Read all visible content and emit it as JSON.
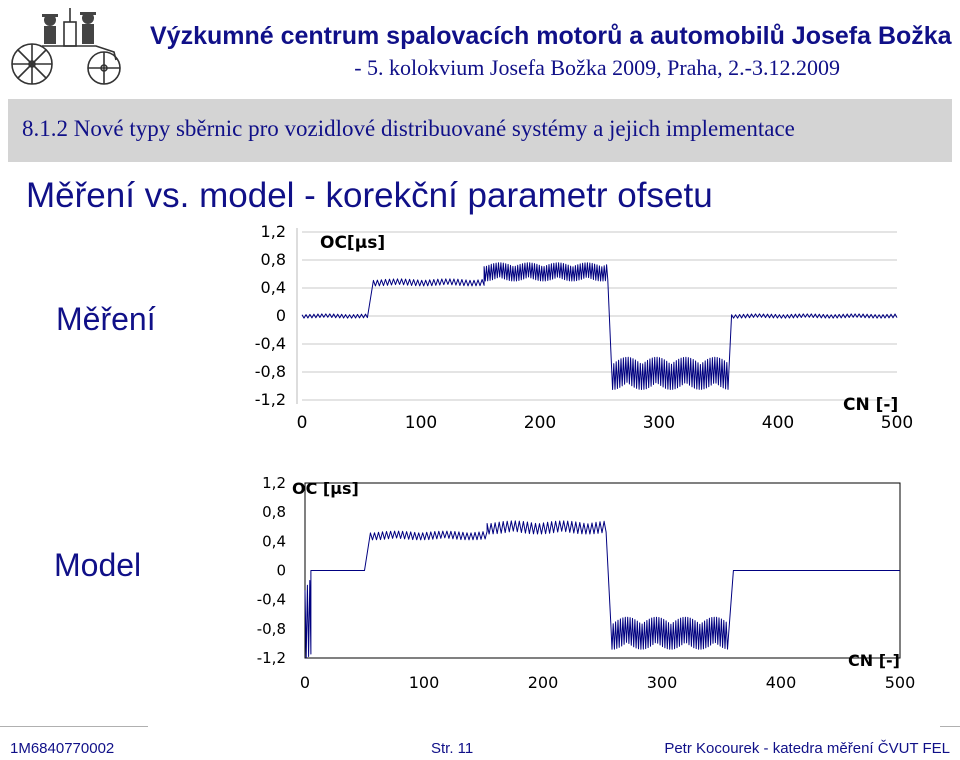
{
  "header": {
    "title": "Výzkumné centrum spalovacích motorů a automobilů Josefa Božka",
    "subtitle": "- 5. kolokvium Josefa Božka 2009, Praha, 2.-3.12.2009"
  },
  "section_bar": "8.1.2 Nové typy sběrnic pro vozidlové distribuované systémy a jejich implementace",
  "slide_title": "Měření vs. model - korekční parametr ofsetu",
  "labels": {
    "measurement": "Měření",
    "model": "Model"
  },
  "footer": {
    "left": "1M6840770002",
    "center": "Str. 11",
    "right": "Petr Kocourek - katedra měření ČVUT FEL"
  },
  "colors": {
    "accent": "#101088",
    "trace": "#000080",
    "bar": "#d4d4d4"
  },
  "icons": [
    "steam-car-logo-icon"
  ],
  "chart_data": [
    {
      "type": "line",
      "title": "",
      "series_label": "OC[µs]",
      "xlabel": "CN [-]",
      "ylabel": "OC[µs]",
      "xlim": [
        0,
        500
      ],
      "ylim": [
        -1.2,
        1.2
      ],
      "xticks": [
        "0",
        "100",
        "200",
        "300",
        "400",
        "500"
      ],
      "yticks": [
        "1,2",
        "0,8",
        "0,4",
        "0",
        "-0,4",
        "-0,8",
        "-1,2"
      ],
      "grid": "horizontal",
      "segments": [
        {
          "x": [
            0,
            55
          ],
          "mean": 0.0,
          "amplitude": 0.03
        },
        {
          "x": [
            60,
            153
          ],
          "mean": 0.48,
          "amplitude": 0.05
        },
        {
          "x": [
            153,
            257
          ],
          "mean": 0.63,
          "amplitude": 0.13
        },
        {
          "x": [
            260,
            358
          ],
          "mean": -0.82,
          "amplitude": 0.23
        },
        {
          "x": [
            361,
            500
          ],
          "mean": 0.0,
          "amplitude": 0.03
        }
      ]
    },
    {
      "type": "line",
      "title": "",
      "series_label": "OC [µs]",
      "xlabel": "CN [-]",
      "ylabel": "OC [µs]",
      "xlim": [
        0,
        500
      ],
      "ylim": [
        -1.2,
        1.2
      ],
      "xticks": [
        "0",
        "100",
        "200",
        "300",
        "400",
        "500"
      ],
      "yticks": [
        "1,2",
        "0,8",
        "0,4",
        "0",
        "-0,4",
        "-0,8",
        "-1,2"
      ],
      "grid": "none",
      "segments": [
        {
          "x": [
            0,
            5
          ],
          "mean": -0.6,
          "amplitude": 0.6
        },
        {
          "x": [
            5,
            50
          ],
          "mean": 0.0,
          "amplitude": 0.0
        },
        {
          "x": [
            55,
            153
          ],
          "mean": 0.48,
          "amplitude": 0.06
        },
        {
          "x": [
            153,
            253
          ],
          "mean": 0.59,
          "amplitude": 0.09
        },
        {
          "x": [
            257,
            355
          ],
          "mean": -0.86,
          "amplitude": 0.22
        },
        {
          "x": [
            360,
            500
          ],
          "mean": 0.0,
          "amplitude": 0.0
        }
      ]
    }
  ]
}
